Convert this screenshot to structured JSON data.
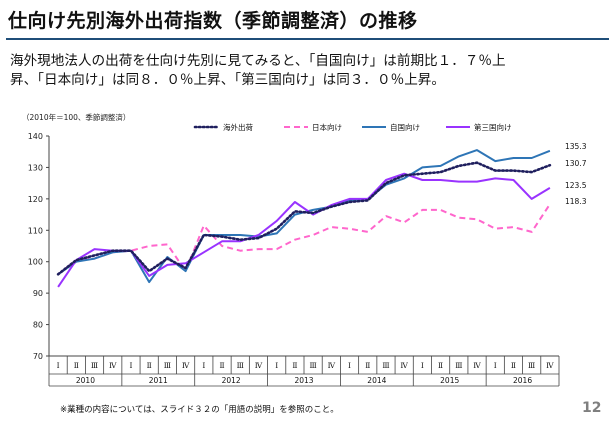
{
  "slide": {
    "title": "仕向け先別海外出荷指数（季節調整済）の推移",
    "body_lines": [
      "海外現地法人の出荷を仕向け先別に見てみると、「自国向け」は前期比１．７％上",
      "昇、「日本向け」は同８．０％上昇、「第三国向け」は同３．０％上昇。"
    ],
    "footnote": "※業種の内容については、スライド３２の「用語の説明」を参照のこと。",
    "page_number": "12"
  },
  "chart_data": {
    "type": "line",
    "unit_note": "（2010年＝100、季節調整済）",
    "quarter_labels": [
      "Ⅰ",
      "Ⅱ",
      "Ⅲ",
      "Ⅳ"
    ],
    "years": [
      "2010",
      "2011",
      "2012",
      "2013",
      "2014",
      "2015",
      "2016"
    ],
    "ylim": [
      70,
      140
    ],
    "yticks": [
      70,
      80,
      90,
      100,
      110,
      120,
      130,
      140
    ],
    "grid": false,
    "legend_position": "top",
    "series": [
      {
        "name": "海外出荷",
        "color": "#1f1f5e",
        "style": "dotted",
        "values": [
          96.0,
          100.5,
          102.0,
          103.5,
          103.5,
          97.0,
          101.0,
          98.0,
          108.5,
          108.0,
          107.0,
          107.5,
          110.5,
          116.0,
          115.5,
          117.5,
          119.0,
          119.5,
          125.0,
          127.5,
          128.0,
          128.5,
          130.5,
          131.5,
          129.0,
          129.0,
          128.5,
          130.7
        ]
      },
      {
        "name": "日本向け",
        "color": "#ff66cc",
        "style": "dashed",
        "values": [
          96.0,
          100.5,
          101.0,
          103.0,
          103.5,
          105.0,
          105.5,
          97.0,
          111.5,
          105.0,
          103.5,
          104.0,
          104.0,
          107.0,
          108.5,
          111.0,
          110.5,
          109.5,
          114.5,
          112.5,
          116.5,
          116.5,
          114.0,
          113.5,
          110.5,
          111.0,
          109.5,
          118.3
        ]
      },
      {
        "name": "自国向け",
        "color": "#2e75b6",
        "style": "solid",
        "values": [
          96.0,
          100.0,
          101.0,
          103.0,
          103.5,
          93.5,
          101.5,
          97.0,
          108.5,
          108.5,
          108.5,
          108.0,
          109.0,
          115.0,
          116.5,
          117.5,
          119.5,
          120.0,
          124.5,
          126.5,
          130.0,
          130.5,
          133.5,
          135.5,
          132.0,
          133.0,
          133.0,
          135.3
        ]
      },
      {
        "name": "第三国向け",
        "color": "#9933ff",
        "style": "solid",
        "values": [
          92.0,
          100.5,
          104.0,
          103.5,
          103.5,
          95.5,
          99.0,
          99.5,
          103.0,
          106.5,
          106.5,
          108.5,
          113.0,
          119.0,
          115.0,
          118.0,
          120.0,
          120.0,
          126.0,
          128.0,
          126.0,
          126.0,
          125.5,
          125.5,
          126.5,
          126.0,
          120.0,
          123.5
        ]
      }
    ],
    "end_labels": [
      "135.3",
      "130.7",
      "123.5",
      "118.3"
    ]
  }
}
